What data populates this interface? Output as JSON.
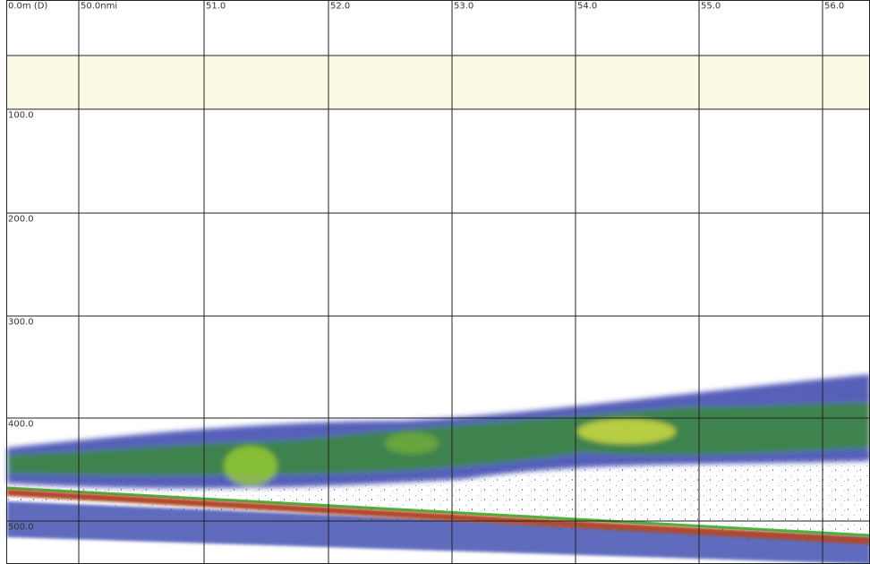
{
  "depth_labels": [
    "0.0m (D)",
    "100.0",
    "200.0",
    "300.0",
    "400.0",
    "500.0"
  ],
  "distance_labels": [
    "50.0nmi",
    "51.0",
    "52.0",
    "53.0",
    "54.0",
    "55.0",
    "56.0"
  ]
}
